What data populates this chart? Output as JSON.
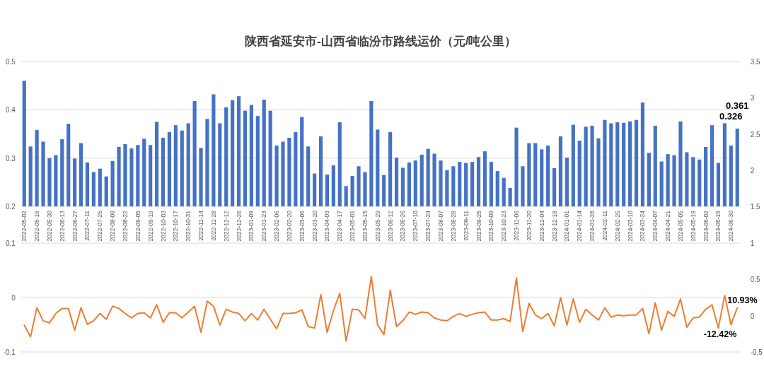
{
  "chart_data": [
    {
      "type": "bar",
      "title": "陕西省延安市-山西省临汾市路线运价（元/吨公里）",
      "categories": [
        "2022-05-02",
        null,
        "2022-05-16",
        null,
        "2022-05-30",
        null,
        "2022-06-13",
        null,
        "2022-06-27",
        null,
        "2022-07-11",
        null,
        "2022-07-25",
        null,
        "2022-08-08",
        null,
        "2022-08-22",
        null,
        "2022-09-05",
        null,
        "2022-09-19",
        null,
        "2022-10-03",
        null,
        "2022-10-17",
        null,
        "2022-10-31",
        null,
        "2022-11-14",
        null,
        "2022-11-28",
        null,
        "2022-12-12",
        null,
        "2022-12-26",
        null,
        "2023-01-09",
        null,
        "2023-01-23",
        null,
        "2023-02-06",
        null,
        "2023-02-20",
        null,
        "2023-03-06",
        null,
        "2023-03-20",
        null,
        "2023-04-03",
        null,
        "2023-04-17",
        null,
        "2023-05-01",
        null,
        "2023-05-15",
        null,
        "2023-05-29",
        null,
        "2023-06-12",
        null,
        "2023-06-26",
        null,
        "2023-07-10",
        null,
        "2023-07-24",
        null,
        "2023-08-07",
        null,
        "2023-08-28",
        null,
        "2023-09-11",
        null,
        "2023-09-25",
        null,
        "2023-10-09",
        null,
        "2023-10-23",
        null,
        "2023-11-06",
        null,
        "2023-11-20",
        null,
        "2023-12-04",
        null,
        "2023-12-18",
        null,
        "2024-01-01",
        null,
        "2024-01-14",
        null,
        "2024-01-28",
        null,
        "2024-02-11",
        null,
        "2024-02-25",
        null,
        "2024-03-10",
        null,
        "2024-03-24",
        null,
        "2024-04-07",
        null,
        "2024-04-21",
        null,
        "2024-05-05",
        null,
        "2024-05-19",
        null,
        "2024-06-02",
        null,
        "2024-06-16",
        null,
        "2024-06-30",
        null
      ],
      "values": [
        0.46,
        0.324,
        0.358,
        0.334,
        0.3,
        0.306,
        0.339,
        0.371,
        0.299,
        0.331,
        0.291,
        0.271,
        0.278,
        0.262,
        0.294,
        0.323,
        0.329,
        0.32,
        0.327,
        0.34,
        0.327,
        0.375,
        0.342,
        0.354,
        0.368,
        0.357,
        0.372,
        0.418,
        0.321,
        0.381,
        0.432,
        0.372,
        0.405,
        0.42,
        0.428,
        0.398,
        0.41,
        0.387,
        0.421,
        0.398,
        0.326,
        0.334,
        0.342,
        0.354,
        0.385,
        0.324,
        0.268,
        0.345,
        0.266,
        0.285,
        0.374,
        0.242,
        0.263,
        0.283,
        0.271,
        0.418,
        0.359,
        0.265,
        0.354,
        0.301,
        0.28,
        0.291,
        0.295,
        0.307,
        0.319,
        0.309,
        0.295,
        0.275,
        0.283,
        0.292,
        0.29,
        0.292,
        0.302,
        0.314,
        0.292,
        0.273,
        0.259,
        0.238,
        0.363,
        0.283,
        0.331,
        0.331,
        0.318,
        0.326,
        0.279,
        0.345,
        0.301,
        0.369,
        0.336,
        0.365,
        0.367,
        0.341,
        0.379,
        0.372,
        0.374,
        0.373,
        0.376,
        0.379,
        0.415,
        0.311,
        0.367,
        0.293,
        0.308,
        0.306,
        0.376,
        0.312,
        0.302,
        0.297,
        0.323,
        0.368,
        0.29,
        0.372,
        0.326,
        0.361
      ],
      "value_labels": [
        null,
        null,
        null,
        null,
        null,
        null,
        null,
        null,
        null,
        null,
        null,
        null,
        null,
        null,
        null,
        null,
        null,
        null,
        null,
        null,
        null,
        null,
        null,
        null,
        null,
        null,
        null,
        null,
        null,
        null,
        null,
        null,
        null,
        null,
        null,
        null,
        null,
        null,
        null,
        null,
        null,
        null,
        null,
        null,
        null,
        null,
        null,
        null,
        null,
        null,
        null,
        null,
        null,
        null,
        null,
        null,
        null,
        null,
        null,
        null,
        null,
        null,
        null,
        null,
        null,
        null,
        null,
        null,
        null,
        null,
        null,
        null,
        null,
        null,
        null,
        null,
        null,
        null,
        null,
        null,
        null,
        null,
        null,
        null,
        null,
        null,
        null,
        null,
        null,
        null,
        null,
        null,
        null,
        null,
        null,
        null,
        null,
        null,
        null,
        null,
        null,
        null,
        null,
        null,
        null,
        null,
        null,
        null,
        null,
        null,
        null,
        null,
        "0.326",
        "0.361"
      ],
      "color": "#4472c4",
      "ylim": [
        0.2,
        0.5
      ],
      "yticks": [
        0.2,
        0.3,
        0.4,
        0.5
      ],
      "y2lim": [
        1.5,
        3.5
      ],
      "y2ticks": [
        1.5,
        2,
        2.5,
        3,
        3.5
      ],
      "grid": "y"
    },
    {
      "type": "line",
      "series": [
        {
          "axis": "y2",
          "color": "#ed7d31",
          "values": [
            -0.13,
            -0.29,
            0.11,
            -0.07,
            -0.1,
            0.03,
            0.1,
            0.1,
            -0.2,
            0.11,
            -0.12,
            -0.07,
            0.03,
            -0.05,
            0.13,
            0.1,
            0.03,
            -0.03,
            0.03,
            0.04,
            -0.03,
            0.15,
            -0.09,
            0.04,
            0.04,
            -0.03,
            0.05,
            0.13,
            -0.23,
            0.2,
            0.13,
            -0.13,
            0.09,
            0.05,
            0.03,
            -0.07,
            0.03,
            -0.06,
            0.09,
            -0.05,
            -0.18,
            0.03,
            0.03,
            0.04,
            0.08,
            -0.15,
            -0.17,
            0.29,
            -0.23,
            0.07,
            0.31,
            -0.35,
            0.09,
            0.08,
            -0.04,
            0.54,
            -0.13,
            -0.26,
            0.35,
            -0.15,
            -0.07,
            0.05,
            0.02,
            0.05,
            0.04,
            -0.03,
            -0.06,
            -0.07,
            -0.01,
            0.03,
            -0.01,
            0.02,
            0.04,
            0.05,
            -0.06,
            -0.06,
            -0.04,
            -0.08,
            0.52,
            -0.22,
            0.17,
            0.01,
            -0.04,
            0.03,
            -0.14,
            0.25,
            -0.13,
            0.23,
            -0.09,
            0.09,
            0.01,
            -0.06,
            0.11,
            -0.02,
            0.01,
            0,
            0.01,
            0.01,
            0.1,
            -0.25,
            0.18,
            -0.2,
            0.06,
            -0.01,
            0.23,
            -0.16,
            -0.03,
            -0.02,
            0.09,
            0.15,
            -0.17,
            0.28,
            -0.1242,
            0.1093
          ],
          "value_labels": [
            null,
            null,
            null,
            null,
            null,
            null,
            null,
            null,
            null,
            null,
            null,
            null,
            null,
            null,
            null,
            null,
            null,
            null,
            null,
            null,
            null,
            null,
            null,
            null,
            null,
            null,
            null,
            null,
            null,
            null,
            null,
            null,
            null,
            null,
            null,
            null,
            null,
            null,
            null,
            null,
            null,
            null,
            null,
            null,
            null,
            null,
            null,
            null,
            null,
            null,
            null,
            null,
            null,
            null,
            null,
            null,
            null,
            null,
            null,
            null,
            null,
            null,
            null,
            null,
            null,
            null,
            null,
            null,
            null,
            null,
            null,
            null,
            null,
            null,
            null,
            null,
            null,
            null,
            null,
            null,
            null,
            null,
            null,
            null,
            null,
            null,
            null,
            null,
            null,
            null,
            null,
            null,
            null,
            null,
            null,
            null,
            null,
            null,
            null,
            null,
            null,
            null,
            null,
            null,
            null,
            null,
            null,
            null,
            null,
            null,
            null,
            null,
            "-12.42%",
            "10.93%"
          ]
        }
      ],
      "ylim": [
        -0.1,
        0.1
      ],
      "yticks": [
        -0.1,
        0,
        0.1
      ],
      "y2lim": [
        -0.5,
        1
      ],
      "y2ticks": [
        -0.5,
        0,
        0.5,
        1
      ],
      "grid": "y",
      "tick_labels": "y"
    }
  ]
}
